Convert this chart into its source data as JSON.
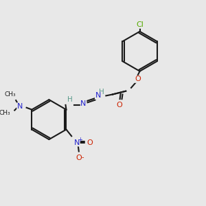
{
  "bg_color": "#e8e8e8",
  "bond_color": "#1a1a1a",
  "atom_colors": {
    "C": "#1a1a1a",
    "H": "#5a9a8a",
    "N": "#2222cc",
    "O": "#cc2200",
    "Cl": "#55aa00"
  },
  "figsize": [
    3.0,
    3.0
  ],
  "dpi": 100
}
